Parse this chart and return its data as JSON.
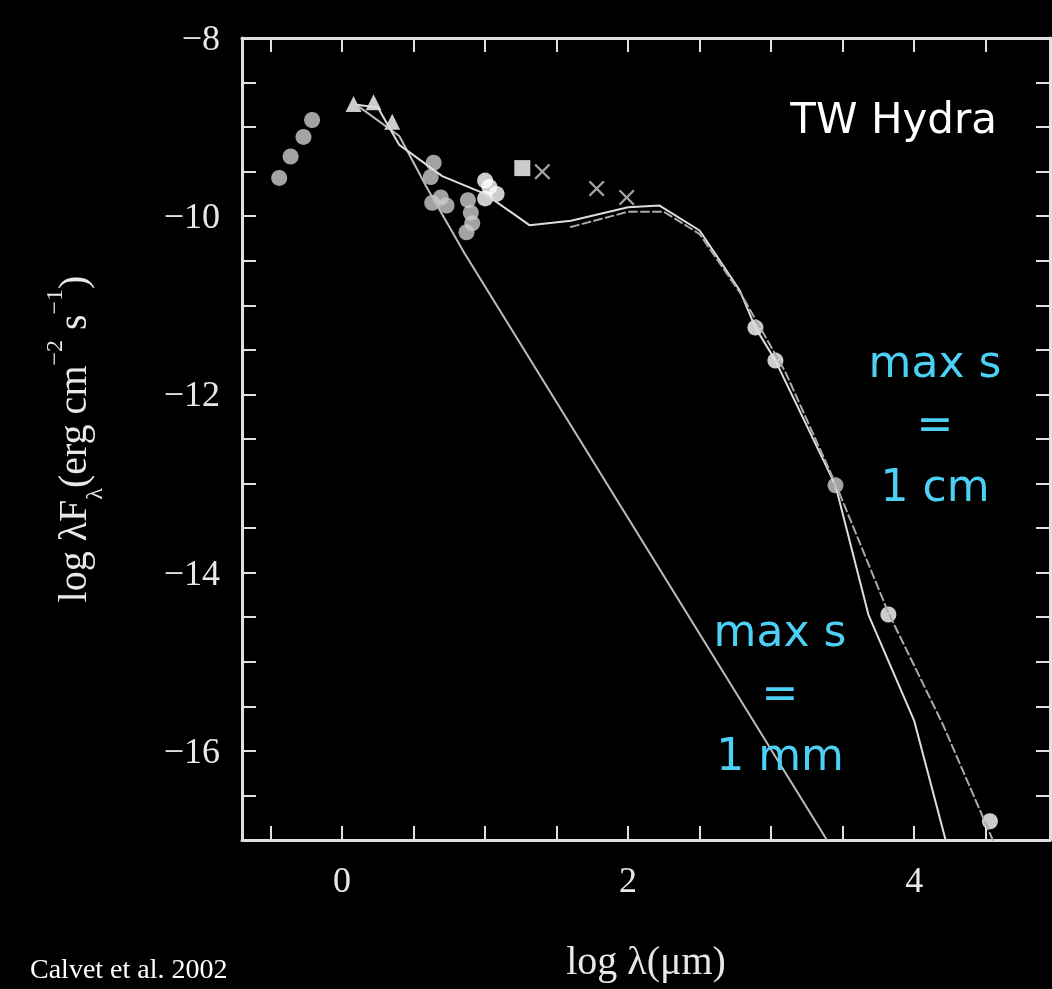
{
  "chart_data": {
    "type": "scatter",
    "title": "TW Hydra",
    "xlabel": "log λ(μm)",
    "ylabel": "log λF$_{λ}$(erg cm$^{−2}$ s$^{−1}$)",
    "annotations": [
      "max s\n=\n1 cm",
      "max s\n=\n1 mm",
      "Calvet et al. 2002"
    ],
    "xlim": [
      -0.7,
      4.95
    ],
    "ylim": [
      -17,
      -8
    ],
    "xticks": [
      {
        "value": -0.5,
        "label": null
      },
      0,
      {
        "value": 0.5,
        "label": null
      },
      {
        "value": 1,
        "label": null
      },
      {
        "value": 1.5,
        "label": null
      },
      2,
      {
        "value": 2.5,
        "label": null
      },
      {
        "value": 3,
        "label": null
      },
      {
        "value": 3.5,
        "label": null
      },
      4,
      {
        "value": 4.5,
        "label": null
      }
    ],
    "yticks": [
      {
        "value": -17,
        "label": null
      },
      -16,
      {
        "value": -15.5,
        "label": null
      },
      {
        "value": -15,
        "label": null
      },
      {
        "value": -14.5,
        "label": null
      },
      -14,
      {
        "value": -13.5,
        "label": null
      },
      {
        "value": -13,
        "label": null
      },
      {
        "value": -12.5,
        "label": null
      },
      -12,
      {
        "value": -11.5,
        "label": null
      },
      {
        "value": -11,
        "label": null
      },
      {
        "value": -10.5,
        "label": null
      },
      -10,
      {
        "value": -9.5,
        "label": null
      },
      {
        "value": -9,
        "label": null
      },
      {
        "value": -8.5,
        "label": null
      },
      -8,
      {
        "value": -16.5,
        "label": null
      }
    ],
    "series": [
      {
        "type": "line",
        "color": "#bbbbbb",
        "line_style": "solid",
        "marker": "none",
        "x": [
          0.1,
          0.4,
          0.6,
          0.85,
          3.39
        ],
        "values": [
          -8.75,
          -9.1,
          -9.7,
          -10.4,
          -17
        ]
      },
      {
        "type": "line",
        "color": "#dddddd",
        "line_style": "solid",
        "marker": "none",
        "x": [
          0.1,
          0.25,
          0.4,
          0.7,
          1.0,
          1.31,
          1.6,
          2.0,
          2.22,
          2.5,
          2.78,
          2.89,
          3.03,
          3.45,
          3.68,
          4.0,
          4.22
        ],
        "values": [
          -8.75,
          -8.78,
          -9.2,
          -9.55,
          -9.75,
          -10.1,
          -10.05,
          -9.9,
          -9.88,
          -10.16,
          -10.83,
          -11.25,
          -11.62,
          -13.02,
          -14.47,
          -15.66,
          -17
        ]
      },
      {
        "type": "line",
        "color": "#aaaaaa",
        "line_style": "dashed",
        "marker": "none",
        "x": [
          1.6,
          2.0,
          2.25,
          2.5,
          2.8,
          3.1,
          3.45,
          3.82,
          4.2,
          4.55
        ],
        "values": [
          -10.12,
          -9.95,
          -9.95,
          -10.2,
          -10.9,
          -11.75,
          -13.0,
          -14.45,
          -15.7,
          -17
        ]
      },
      {
        "color": "#cccccc",
        "marker": "circle",
        "x": [
          -0.44,
          -0.36,
          -0.27,
          -0.21,
          3.45
        ],
        "values": [
          -9.57,
          -9.33,
          -9.11,
          -8.92,
          -13.02
        ]
      },
      {
        "color": "#ffffff",
        "marker": "triangle",
        "x": [
          0.08,
          0.22,
          0.35
        ],
        "values": [
          -8.74,
          -8.72,
          -8.94
        ]
      },
      {
        "color": "#cccccc",
        "marker": "circle",
        "x": [
          0.64,
          0.62,
          0.69,
          0.63,
          0.73,
          0.88,
          0.9,
          0.91,
          0.87
        ],
        "values": [
          -9.4,
          -9.56,
          -9.79,
          -9.85,
          -9.88,
          -9.82,
          -9.96,
          -10.08,
          -10.18
        ]
      },
      {
        "color": "#ffffff",
        "marker": "circle",
        "x": [
          1.0,
          1.03,
          1.08,
          1.0,
          2.89,
          3.03,
          3.82,
          4.53
        ],
        "values": [
          -9.6,
          -9.67,
          -9.75,
          -9.8,
          -11.25,
          -11.62,
          -14.47,
          -16.79
        ]
      },
      {
        "color": "#ffffff",
        "marker": "square",
        "x": [
          1.26
        ],
        "values": [
          -9.46
        ]
      },
      {
        "color": "#cccccc",
        "marker": "cross",
        "x": [
          1.4,
          1.78,
          1.99
        ],
        "values": [
          -9.5,
          -9.69,
          -9.79
        ]
      }
    ]
  }
}
